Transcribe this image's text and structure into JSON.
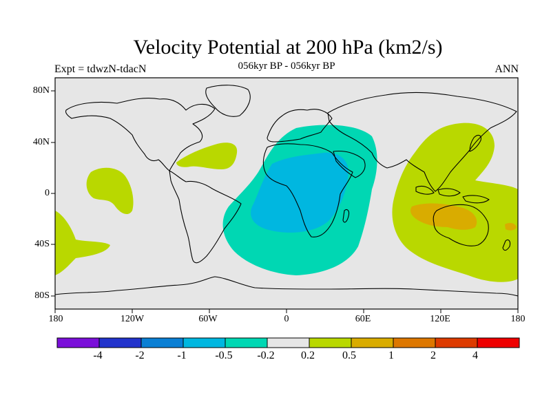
{
  "title": "Velocity Potential at 200 hPa (km2/s)",
  "subtitle": "056kyr BP - 056kyr BP",
  "left_label": "Expt = tdwzN-tdacN",
  "right_label": "ANN",
  "map": {
    "lat_labels": [
      "80N",
      "40N",
      "0",
      "40S",
      "80S"
    ],
    "lon_labels": [
      "180",
      "120W",
      "60W",
      "0",
      "60E",
      "120E",
      "180"
    ]
  },
  "colorbar": {
    "colors": [
      "#7a0fd9",
      "#2233cc",
      "#0a7fd4",
      "#00b7e0",
      "#00d7b3",
      "#e6e6e6",
      "#b9d800",
      "#d9ac00",
      "#dd7700",
      "#dd3b00",
      "#ee0000"
    ],
    "labels": [
      "-4",
      "-2",
      "-1",
      "-0.5",
      "-0.2",
      "0.2",
      "0.5",
      "1",
      "2",
      "4"
    ]
  },
  "fields": {
    "background": "#e6e6e6",
    "positive_light": "#b9d800",
    "positive_mid": "#d9ac00",
    "negative_light": "#00d7b3",
    "negative_mid": "#00b7e0"
  }
}
